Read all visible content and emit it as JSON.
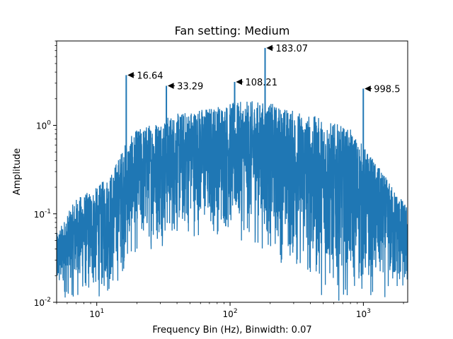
{
  "chart_data": {
    "type": "line",
    "title": "Fan setting: Medium",
    "xlabel": "Frequency Bin (Hz), Binwidth: 0.07",
    "ylabel": "Amplitude",
    "xscale": "log",
    "yscale": "log",
    "xlim": [
      5,
      2150
    ],
    "ylim": [
      0.01,
      9
    ],
    "grid": false,
    "legend": "none",
    "color": "#1f77b4",
    "x_ticks": [
      {
        "value": 10,
        "label": "10^1"
      },
      {
        "value": 100,
        "label": "10^2"
      },
      {
        "value": 1000,
        "label": "10^3"
      }
    ],
    "y_ticks": [
      {
        "value": 0.01,
        "label": "10^-2"
      },
      {
        "value": 0.1,
        "label": "10^-1"
      },
      {
        "value": 1,
        "label": "10^0"
      }
    ],
    "peaks": [
      {
        "x": 16.64,
        "y": 3.7,
        "label": "16.64"
      },
      {
        "x": 33.29,
        "y": 2.8,
        "label": "33.29"
      },
      {
        "x": 108.21,
        "y": 3.1,
        "label": "108.21"
      },
      {
        "x": 183.07,
        "y": 7.5,
        "label": "183.07"
      },
      {
        "x": 998.5,
        "y": 2.6,
        "label": "998.5"
      }
    ],
    "envelope": {
      "x": [
        5,
        7,
        10,
        13,
        16,
        20,
        30,
        50,
        80,
        100,
        150,
        200,
        300,
        500,
        800,
        1000,
        1500,
        2150
      ],
      "upper": [
        0.06,
        0.15,
        0.2,
        0.3,
        0.6,
        0.9,
        1.2,
        1.5,
        1.7,
        1.8,
        1.9,
        1.8,
        1.5,
        1.2,
        0.9,
        0.6,
        0.25,
        0.12
      ],
      "lower": [
        0.01,
        0.01,
        0.01,
        0.01,
        0.02,
        0.03,
        0.04,
        0.05,
        0.05,
        0.05,
        0.04,
        0.03,
        0.02,
        0.01,
        0.01,
        0.01,
        0.01,
        0.01
      ]
    }
  }
}
